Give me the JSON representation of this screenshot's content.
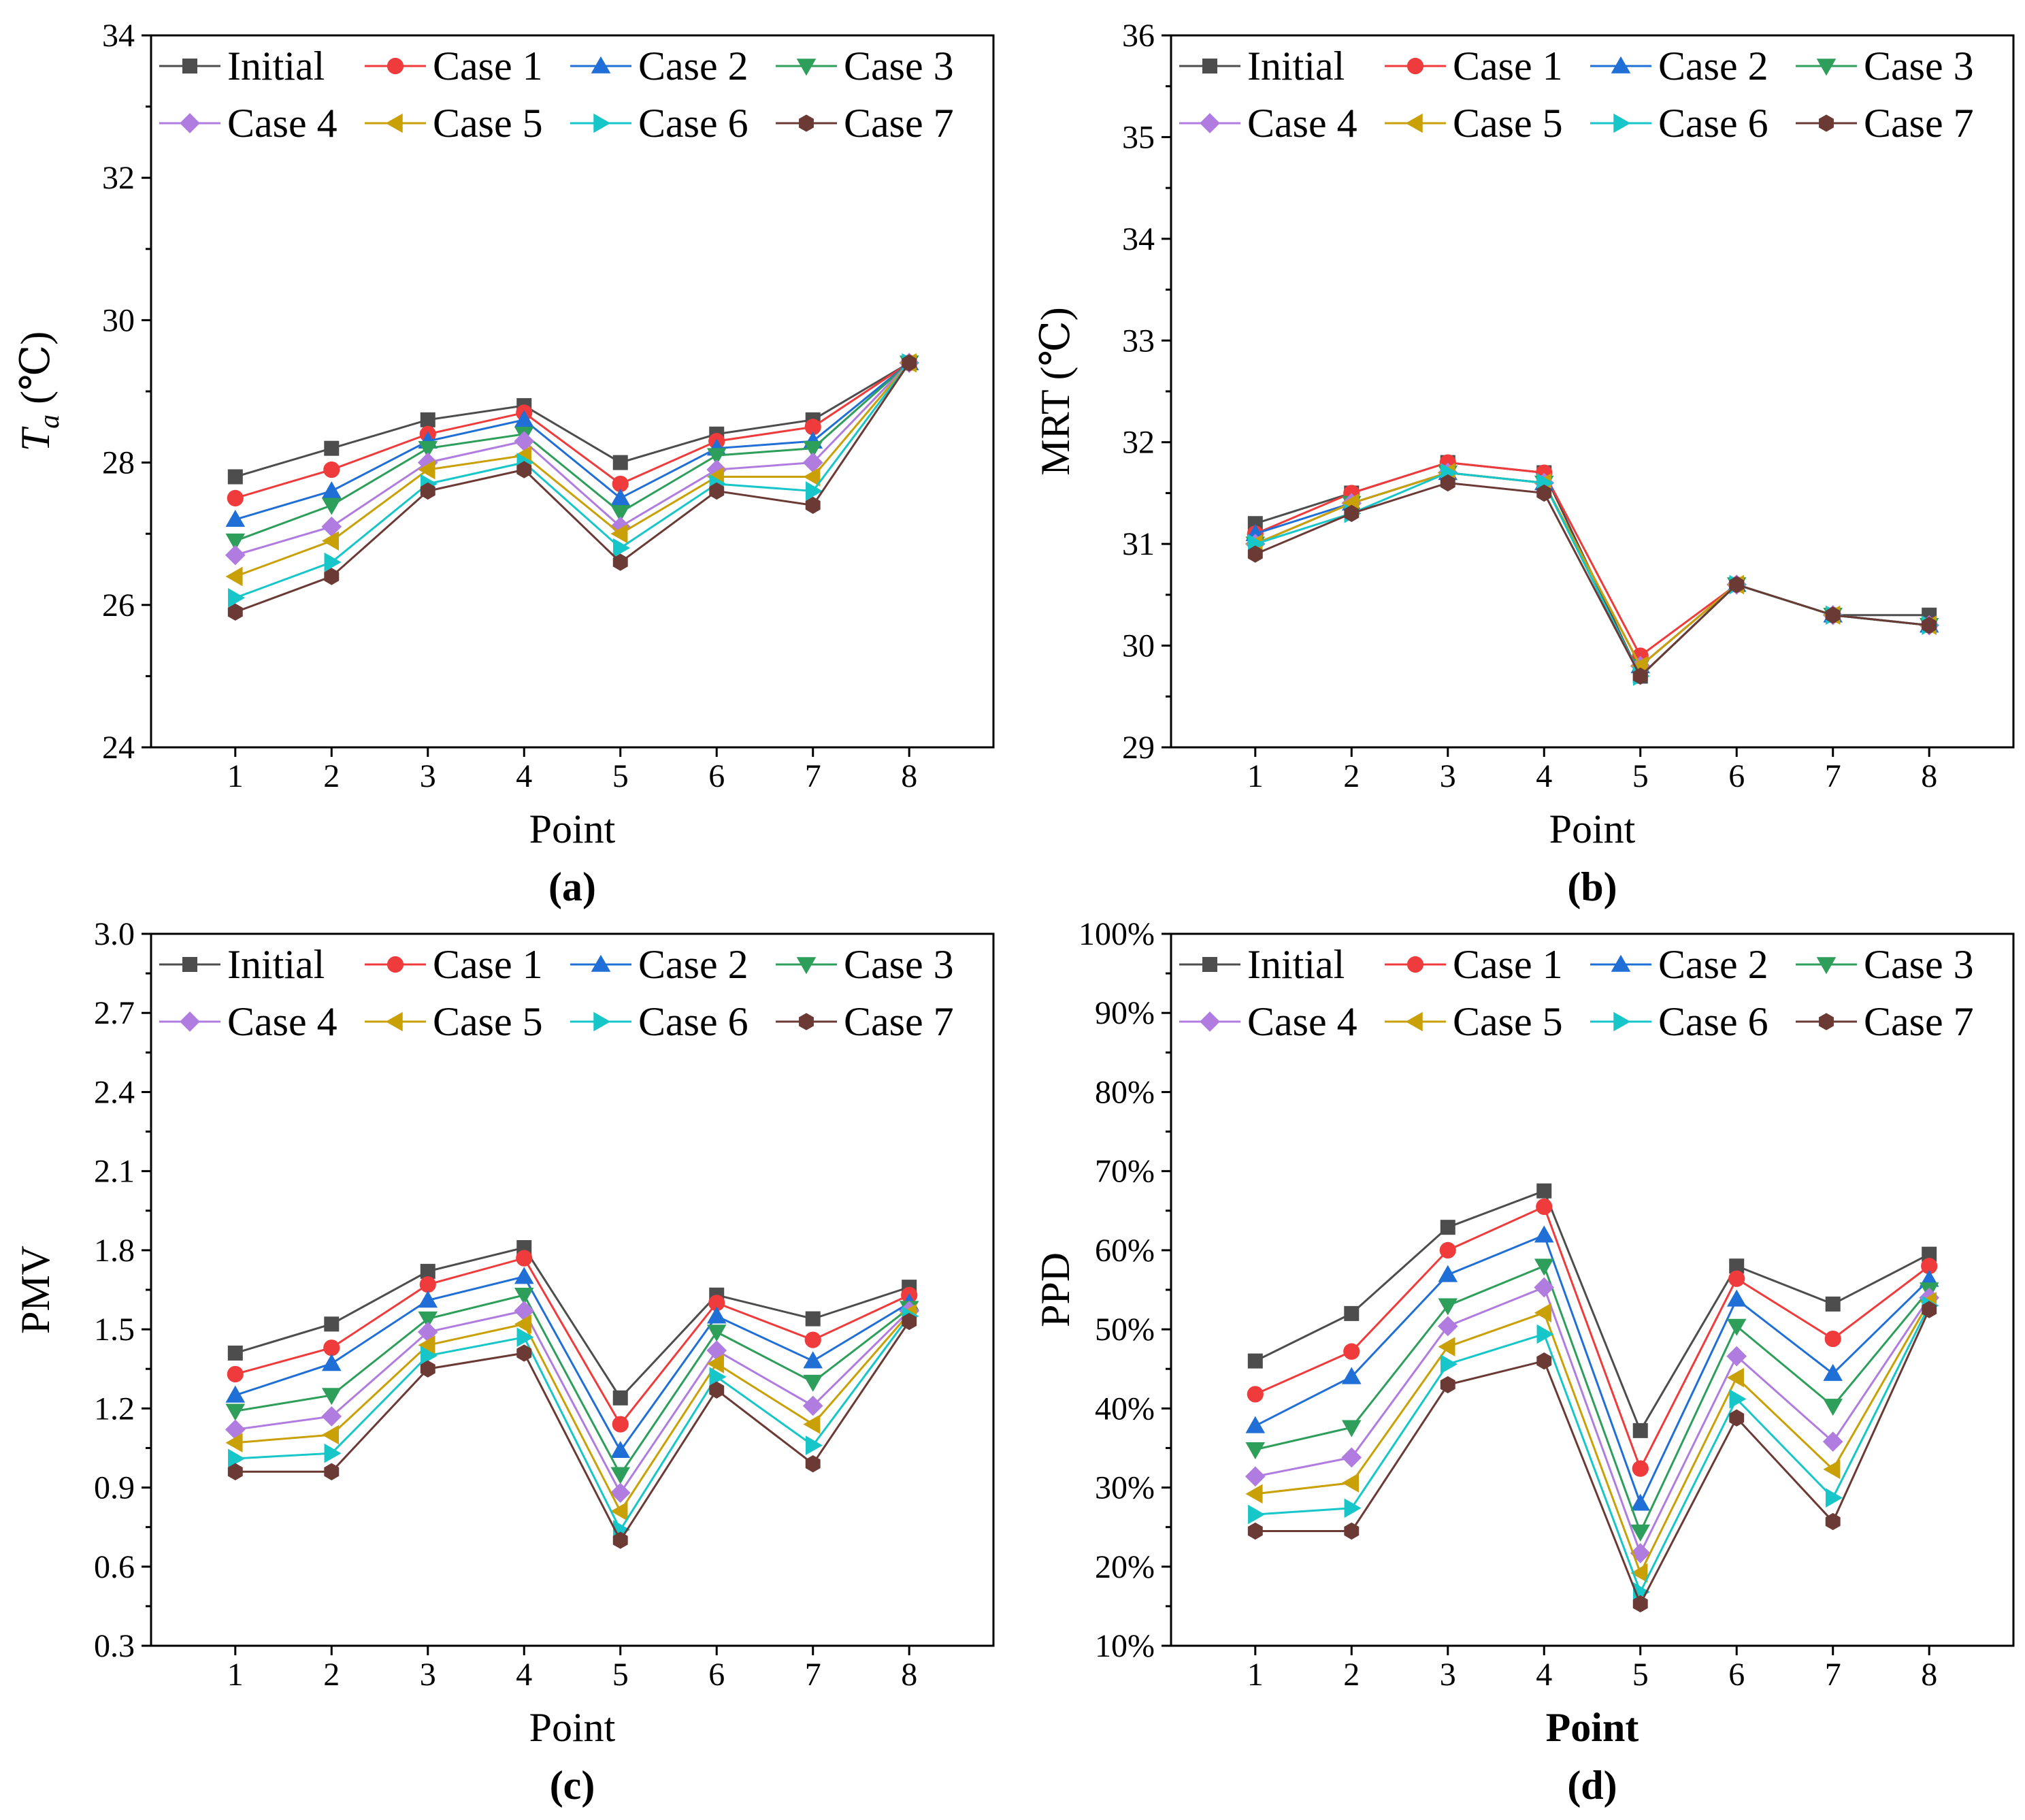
{
  "figure": {
    "marker_colors": [
      "#4d4d4d",
      "#ef3b3b",
      "#1f6fd6",
      "#2e9e5b",
      "#b07ce0",
      "#c9a006",
      "#17c6c9",
      "#6b3a35"
    ],
    "line_colors": [
      "#4d4d4d",
      "#ef3b3b",
      "#1f6fd6",
      "#2e9e5b",
      "#b07ce0",
      "#c9a006",
      "#17c6c9",
      "#6b3a35"
    ],
    "markers": [
      "square",
      "circle",
      "triangle-up",
      "triangle-down",
      "diamond",
      "triangle-left",
      "triangle-right",
      "hexagon"
    ]
  },
  "chart_data": [
    {
      "panel_label": "(a)",
      "type": "line",
      "title": "",
      "xlabel": "Point",
      "ylabel_main": "T",
      "ylabel_sub": "a",
      "ylabel_rest": " (℃)",
      "ylim": [
        24,
        34
      ],
      "yticks": [
        24,
        26,
        28,
        30,
        32,
        34
      ],
      "ytick_labels": [
        "24",
        "26",
        "28",
        "30",
        "32",
        "34"
      ],
      "x": [
        1,
        2,
        3,
        4,
        5,
        6,
        7,
        8
      ],
      "series": [
        {
          "name": "Initial",
          "values": [
            27.8,
            28.2,
            28.6,
            28.8,
            28.0,
            28.4,
            28.6,
            29.4
          ]
        },
        {
          "name": "Case 1",
          "values": [
            27.5,
            27.9,
            28.4,
            28.7,
            27.7,
            28.3,
            28.5,
            29.4
          ]
        },
        {
          "name": "Case 2",
          "values": [
            27.2,
            27.6,
            28.3,
            28.6,
            27.5,
            28.2,
            28.3,
            29.4
          ]
        },
        {
          "name": "Case 3",
          "values": [
            26.9,
            27.4,
            28.2,
            28.4,
            27.3,
            28.1,
            28.2,
            29.4
          ]
        },
        {
          "name": "Case 4",
          "values": [
            26.7,
            27.1,
            28.0,
            28.3,
            27.1,
            27.9,
            28.0,
            29.4
          ]
        },
        {
          "name": "Case 5",
          "values": [
            26.4,
            26.9,
            27.9,
            28.1,
            27.0,
            27.8,
            27.8,
            29.4
          ]
        },
        {
          "name": "Case 6",
          "values": [
            26.1,
            26.6,
            27.7,
            28.0,
            26.8,
            27.7,
            27.6,
            29.4
          ]
        },
        {
          "name": "Case 7",
          "values": [
            25.9,
            26.4,
            27.6,
            27.9,
            26.6,
            27.6,
            27.4,
            29.4
          ]
        }
      ]
    },
    {
      "panel_label": "(b)",
      "type": "line",
      "title": "",
      "xlabel": "Point",
      "ylabel_main": "MRT (℃)",
      "ylabel_sub": "",
      "ylabel_rest": "",
      "ylim": [
        29,
        36
      ],
      "yticks": [
        29,
        30,
        31,
        32,
        33,
        34,
        35,
        36
      ],
      "ytick_labels": [
        "29",
        "30",
        "31",
        "32",
        "33",
        "34",
        "35",
        "36"
      ],
      "x": [
        1,
        2,
        3,
        4,
        5,
        6,
        7,
        8
      ],
      "series": [
        {
          "name": "Initial",
          "values": [
            31.2,
            31.5,
            31.8,
            31.7,
            29.7,
            30.6,
            30.3,
            30.3
          ]
        },
        {
          "name": "Case 1",
          "values": [
            31.1,
            31.5,
            31.8,
            31.7,
            29.9,
            30.6,
            30.3,
            30.2
          ]
        },
        {
          "name": "Case 2",
          "values": [
            31.1,
            31.4,
            31.7,
            31.6,
            29.8,
            30.6,
            30.3,
            30.2
          ]
        },
        {
          "name": "Case 3",
          "values": [
            31.0,
            31.4,
            31.7,
            31.6,
            29.8,
            30.6,
            30.3,
            30.2
          ]
        },
        {
          "name": "Case 4",
          "values": [
            31.0,
            31.4,
            31.7,
            31.6,
            29.8,
            30.6,
            30.3,
            30.2
          ]
        },
        {
          "name": "Case 5",
          "values": [
            31.0,
            31.4,
            31.7,
            31.6,
            29.8,
            30.6,
            30.3,
            30.2
          ]
        },
        {
          "name": "Case 6",
          "values": [
            31.0,
            31.3,
            31.7,
            31.6,
            29.7,
            30.6,
            30.3,
            30.2
          ]
        },
        {
          "name": "Case 7",
          "values": [
            30.9,
            31.3,
            31.6,
            31.5,
            29.7,
            30.6,
            30.3,
            30.2
          ]
        }
      ]
    },
    {
      "panel_label": "(c)",
      "type": "line",
      "title": "",
      "xlabel": "Point",
      "ylabel_main": "PMV",
      "ylabel_sub": "",
      "ylabel_rest": "",
      "ylim": [
        0.3,
        3.0
      ],
      "yticks": [
        0.3,
        0.6,
        0.9,
        1.2,
        1.5,
        1.8,
        2.1,
        2.4,
        2.7,
        3.0
      ],
      "ytick_labels": [
        "0.3",
        "0.6",
        "0.9",
        "1.2",
        "1.5",
        "1.8",
        "2.1",
        "2.4",
        "2.7",
        "3.0"
      ],
      "x": [
        1,
        2,
        3,
        4,
        5,
        6,
        7,
        8
      ],
      "series": [
        {
          "name": "Initial",
          "values": [
            1.41,
            1.52,
            1.72,
            1.81,
            1.24,
            1.63,
            1.54,
            1.66
          ]
        },
        {
          "name": "Case 1",
          "values": [
            1.33,
            1.43,
            1.67,
            1.77,
            1.14,
            1.6,
            1.46,
            1.63
          ]
        },
        {
          "name": "Case 2",
          "values": [
            1.25,
            1.37,
            1.61,
            1.7,
            1.04,
            1.55,
            1.38,
            1.6
          ]
        },
        {
          "name": "Case 3",
          "values": [
            1.19,
            1.25,
            1.54,
            1.63,
            0.95,
            1.49,
            1.3,
            1.58
          ]
        },
        {
          "name": "Case 4",
          "values": [
            1.12,
            1.17,
            1.49,
            1.57,
            0.88,
            1.42,
            1.21,
            1.57
          ]
        },
        {
          "name": "Case 5",
          "values": [
            1.07,
            1.1,
            1.44,
            1.52,
            0.81,
            1.37,
            1.14,
            1.56
          ]
        },
        {
          "name": "Case 6",
          "values": [
            1.01,
            1.03,
            1.4,
            1.47,
            0.74,
            1.32,
            1.06,
            1.55
          ]
        },
        {
          "name": "Case 7",
          "values": [
            0.96,
            0.96,
            1.35,
            1.41,
            0.7,
            1.27,
            0.99,
            1.53
          ]
        }
      ]
    },
    {
      "panel_label": "(d)",
      "type": "line",
      "title": "",
      "xlabel": "Point",
      "xlabel_bold": true,
      "ylabel_main": "PPD",
      "ylabel_sub": "",
      "ylabel_rest": "",
      "ylim": [
        10,
        100
      ],
      "yticks": [
        10,
        20,
        30,
        40,
        50,
        60,
        70,
        80,
        90,
        100
      ],
      "ytick_labels": [
        "10%",
        "20%",
        "30%",
        "40%",
        "50%",
        "60%",
        "70%",
        "80%",
        "90%",
        "100%"
      ],
      "x": [
        1,
        2,
        3,
        4,
        5,
        6,
        7,
        8
      ],
      "series": [
        {
          "name": "Initial",
          "values": [
            46.0,
            52.0,
            62.9,
            67.5,
            37.2,
            58.0,
            53.2,
            59.5
          ]
        },
        {
          "name": "Case 1",
          "values": [
            41.8,
            47.2,
            60.0,
            65.5,
            32.4,
            56.4,
            48.8,
            58.0
          ]
        },
        {
          "name": "Case 2",
          "values": [
            37.8,
            44.0,
            56.9,
            61.9,
            28.0,
            53.8,
            44.4,
            56.3
          ]
        },
        {
          "name": "Case 3",
          "values": [
            34.8,
            37.6,
            53.0,
            58.0,
            24.4,
            50.4,
            40.3,
            55.0
          ]
        },
        {
          "name": "Case 4",
          "values": [
            31.4,
            33.8,
            50.4,
            55.3,
            21.7,
            46.6,
            35.8,
            54.0
          ]
        },
        {
          "name": "Case 5",
          "values": [
            29.2,
            30.6,
            47.8,
            52.1,
            19.2,
            43.9,
            32.3,
            53.5
          ]
        },
        {
          "name": "Case 6",
          "values": [
            26.6,
            27.4,
            45.6,
            49.4,
            16.8,
            41.2,
            28.7,
            53.0
          ]
        },
        {
          "name": "Case 7",
          "values": [
            24.5,
            24.5,
            43.0,
            46.0,
            15.3,
            38.8,
            25.7,
            52.5
          ]
        }
      ]
    }
  ]
}
